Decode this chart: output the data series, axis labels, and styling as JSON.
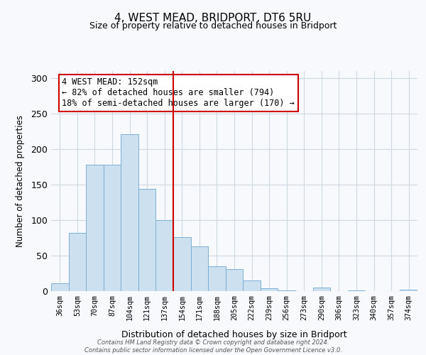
{
  "title": "4, WEST MEAD, BRIDPORT, DT6 5RU",
  "subtitle": "Size of property relative to detached houses in Bridport",
  "xlabel": "Distribution of detached houses by size in Bridport",
  "ylabel": "Number of detached properties",
  "bar_labels": [
    "36sqm",
    "53sqm",
    "70sqm",
    "87sqm",
    "104sqm",
    "121sqm",
    "137sqm",
    "154sqm",
    "171sqm",
    "188sqm",
    "205sqm",
    "222sqm",
    "239sqm",
    "256sqm",
    "273sqm",
    "290sqm",
    "306sqm",
    "323sqm",
    "340sqm",
    "357sqm",
    "374sqm"
  ],
  "bar_heights": [
    11,
    82,
    178,
    178,
    221,
    144,
    100,
    76,
    63,
    35,
    31,
    15,
    4,
    1,
    0,
    5,
    0,
    1,
    0,
    0,
    2
  ],
  "bar_color": "#cce0f0",
  "bar_edge_color": "#7ab0d4",
  "ylim": [
    0,
    310
  ],
  "yticks": [
    0,
    50,
    100,
    150,
    200,
    250,
    300
  ],
  "vline_x_bar_index": 7,
  "vline_color": "#cc0000",
  "annotation_text": "4 WEST MEAD: 152sqm\n← 82% of detached houses are smaller (794)\n18% of semi-detached houses are larger (170) →",
  "annotation_box_color": "#ffffff",
  "annotation_box_edge_color": "#cc0000",
  "footer_line1": "Contains HM Land Registry data © Crown copyright and database right 2024.",
  "footer_line2": "Contains public sector information licensed under the Open Government Licence v3.0.",
  "background_color": "#f7f9fc",
  "grid_color": "#d0d8e4"
}
